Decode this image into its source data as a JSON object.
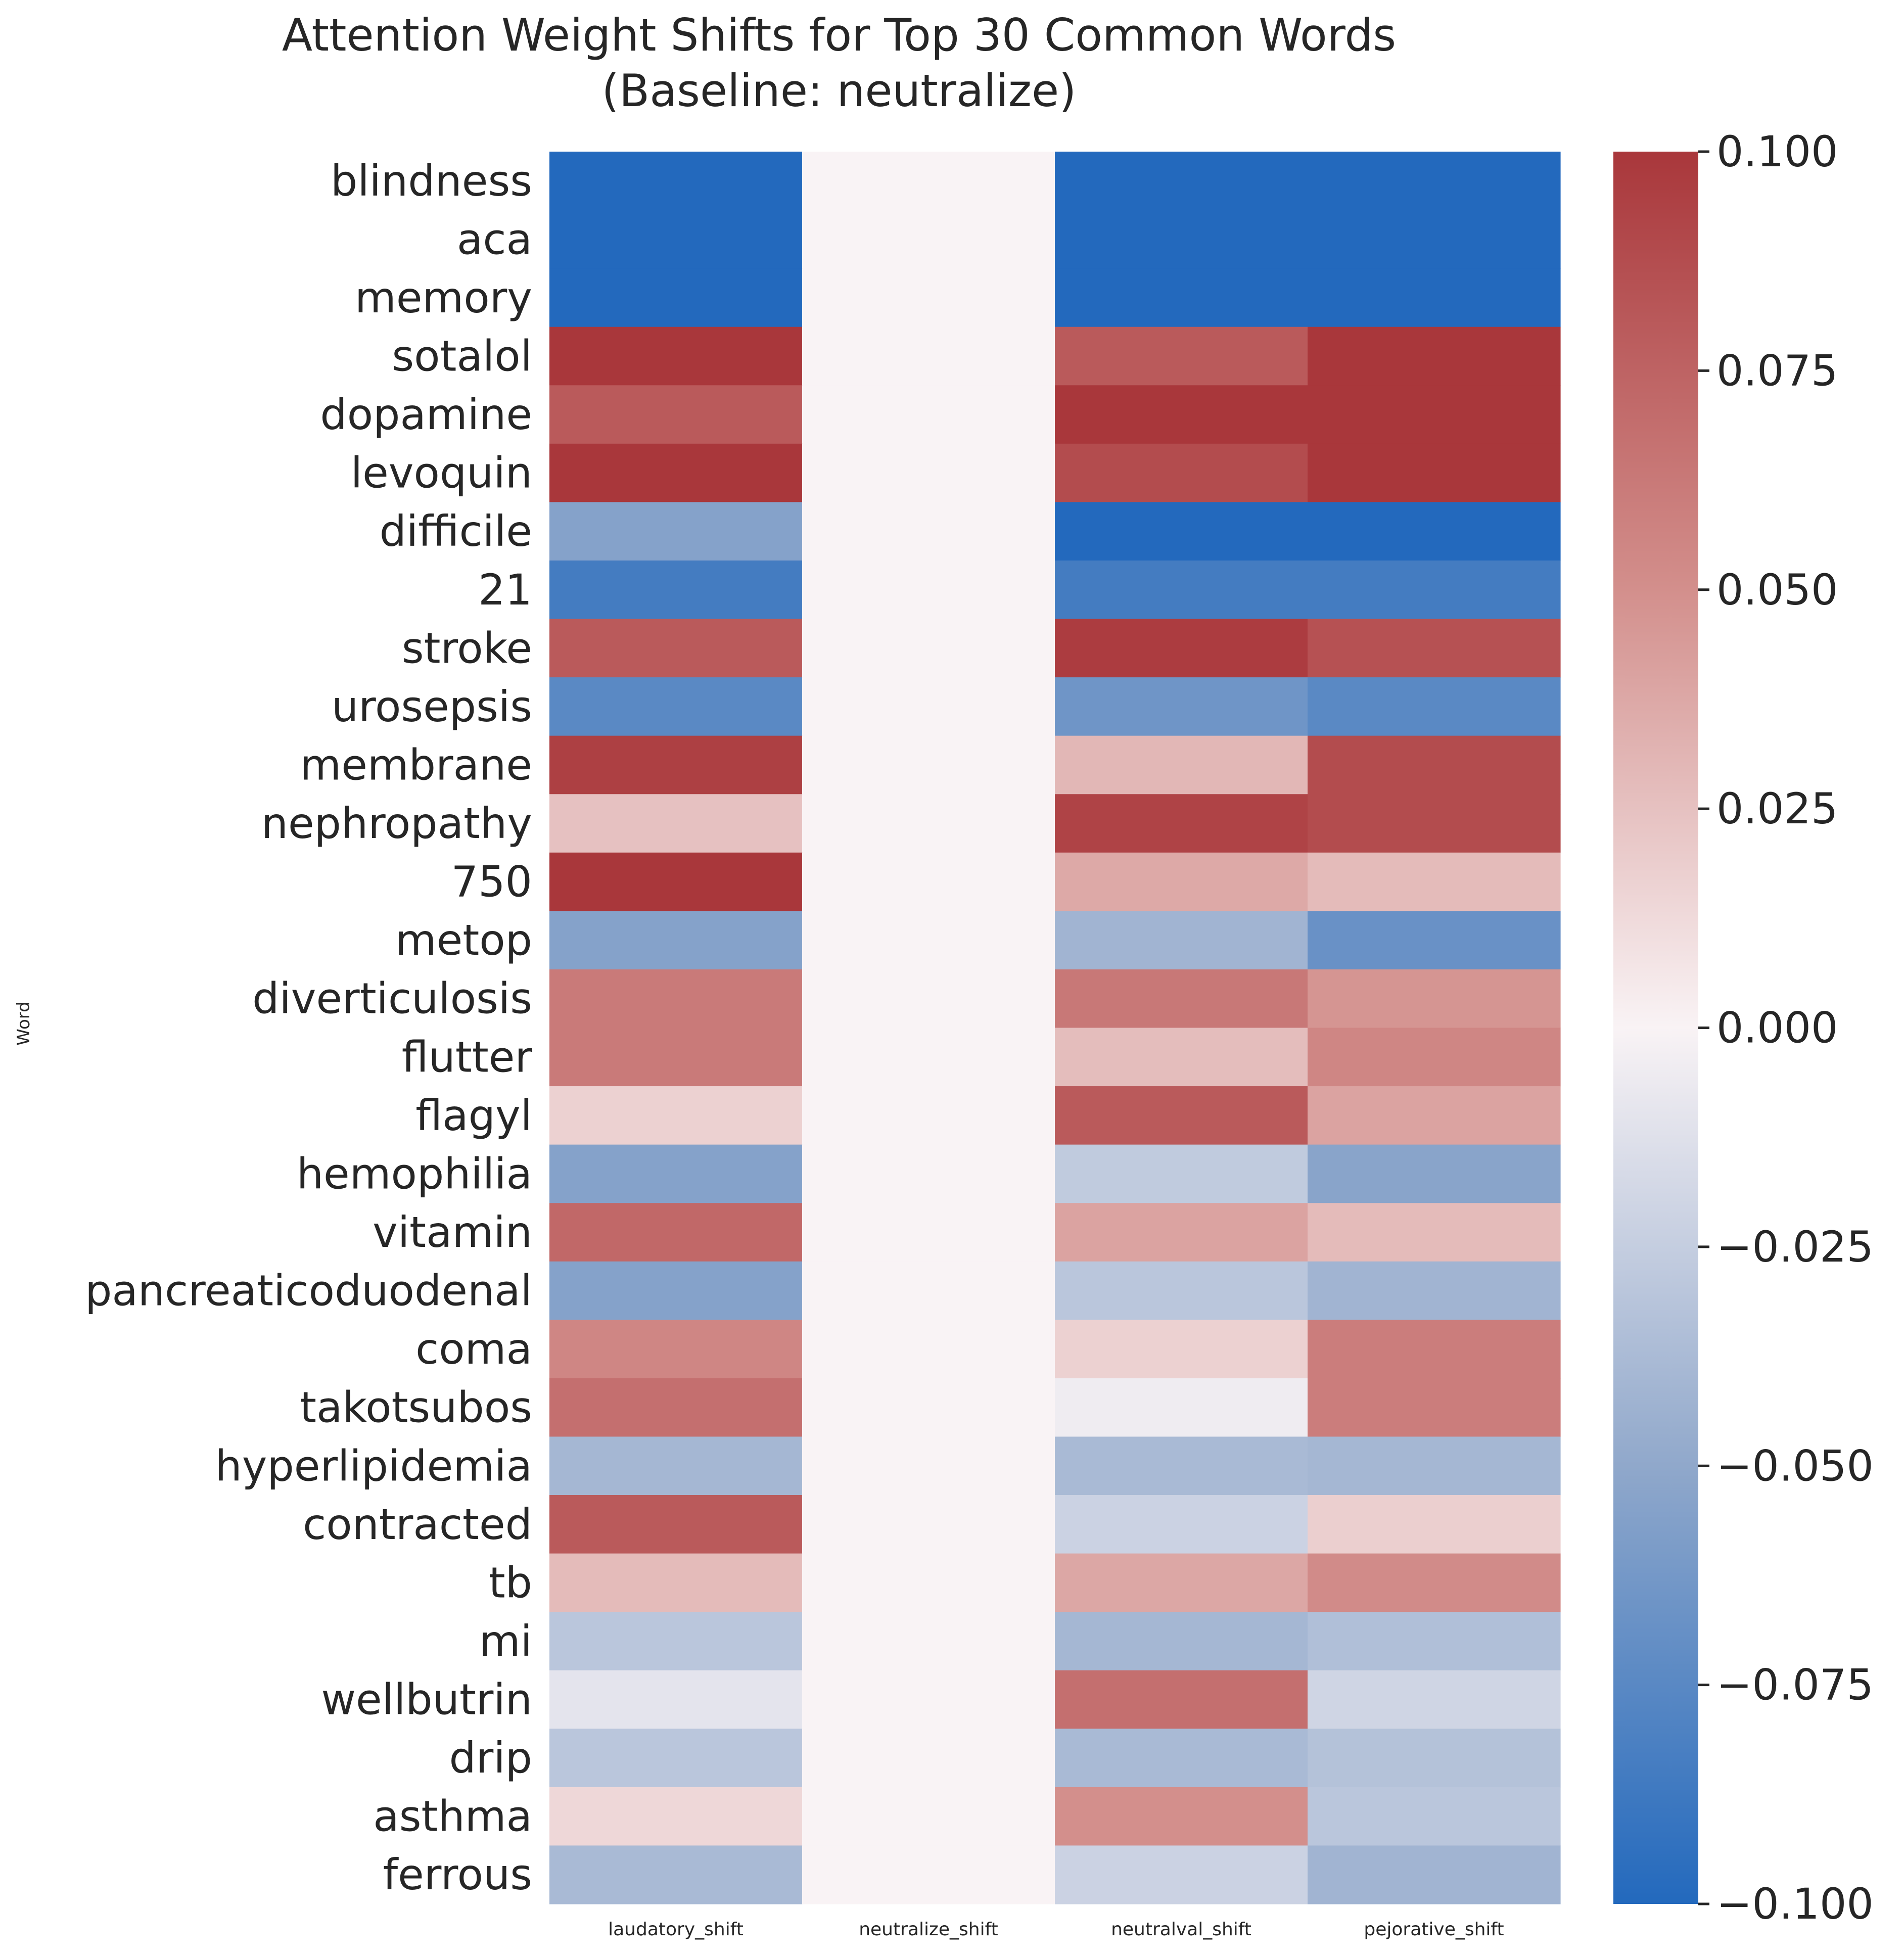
{
  "chart_data": {
    "type": "heatmap",
    "title": "Attention Weight Shifts for Top 30 Common Words",
    "subtitle": "(Baseline: neutralize)",
    "ylabel": "Word",
    "xlabel": "",
    "columns": [
      "laudatory_shift",
      "neutralize_shift",
      "neutralval_shift",
      "pejorative_shift"
    ],
    "rows": [
      "blindness",
      "aca",
      "memory",
      "sotalol",
      "dopamine",
      "levoquin",
      "difficile",
      "21",
      "stroke",
      "urosepsis",
      "membrane",
      "nephropathy",
      "750",
      "metop",
      "diverticulosis",
      "flutter",
      "flagyl",
      "hemophilia",
      "vitamin",
      "pancreaticoduodenal",
      "coma",
      "takotsubos",
      "hyperlipidemia",
      "contracted",
      "tb",
      "mi",
      "wellbutrin",
      "drip",
      "asthma",
      "ferrous"
    ],
    "values": [
      [
        -0.1,
        0,
        -0.1,
        -0.1
      ],
      [
        -0.1,
        0,
        -0.1,
        -0.1
      ],
      [
        -0.1,
        0,
        -0.1,
        -0.1
      ],
      [
        0.1,
        0,
        0.08,
        0.1
      ],
      [
        0.08,
        0,
        0.1,
        0.1
      ],
      [
        0.1,
        0,
        0.088,
        0.1
      ],
      [
        -0.055,
        0,
        -0.1,
        -0.1
      ],
      [
        -0.085,
        0,
        -0.085,
        -0.085
      ],
      [
        0.08,
        0,
        0.097,
        0.085
      ],
      [
        -0.075,
        0,
        -0.065,
        -0.075
      ],
      [
        0.095,
        0,
        0.03,
        0.088
      ],
      [
        0.025,
        0,
        0.093,
        0.088
      ],
      [
        0.1,
        0,
        0.037,
        0.028
      ],
      [
        -0.055,
        0,
        -0.042,
        -0.068
      ],
      [
        0.062,
        0,
        0.063,
        0.047
      ],
      [
        0.062,
        0,
        0.027,
        0.055
      ],
      [
        0.017,
        0,
        0.08,
        0.04
      ],
      [
        -0.055,
        0,
        -0.027,
        -0.053
      ],
      [
        0.072,
        0,
        0.04,
        0.028
      ],
      [
        -0.055,
        0,
        -0.03,
        -0.042
      ],
      [
        0.055,
        0,
        0.017,
        0.06
      ],
      [
        0.068,
        0,
        -0.005,
        0.06
      ],
      [
        -0.04,
        0,
        -0.038,
        -0.04
      ],
      [
        0.08,
        0,
        -0.022,
        0.018
      ],
      [
        0.028,
        0,
        0.038,
        0.052
      ],
      [
        -0.03,
        0,
        -0.04,
        -0.035
      ],
      [
        -0.01,
        0,
        0.068,
        -0.02
      ],
      [
        -0.03,
        0,
        -0.038,
        -0.033
      ],
      [
        0.014,
        0,
        0.05,
        -0.03
      ],
      [
        -0.038,
        0,
        -0.022,
        -0.042
      ]
    ],
    "vmin": -0.1,
    "vmax": 0.1,
    "colormap": "blue-white-red (vlag)",
    "colorbar_ticks": [
      "0.100",
      "0.075",
      "0.050",
      "0.025",
      "0.000",
      "−0.025",
      "−0.050",
      "−0.075",
      "−0.100"
    ],
    "colorbar_tick_values": [
      0.1,
      0.075,
      0.05,
      0.025,
      0,
      -0.025,
      -0.05,
      -0.075,
      -0.1
    ],
    "color_stops": [
      {
        "v": -0.1,
        "color": "#2369bd"
      },
      {
        "v": -0.05,
        "color": "#90a8cb"
      },
      {
        "v": 0.0,
        "color": "#f9f3f5"
      },
      {
        "v": 0.05,
        "color": "#d38f8c"
      },
      {
        "v": 0.1,
        "color": "#a9373b"
      }
    ],
    "grid": false,
    "legend": "colorbar-right"
  }
}
